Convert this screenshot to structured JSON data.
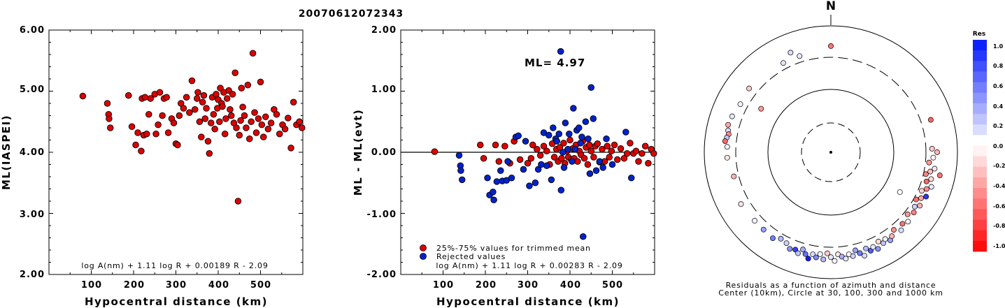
{
  "page_title": "20070612072343",
  "chart_data": [
    {
      "type": "scatter",
      "xlabel": "Hypocentral distance (km)",
      "ylabel": "ML(IASPEI)",
      "xticks": [
        "100",
        "200",
        "300",
        "400",
        "500"
      ],
      "yticks": [
        "2.00",
        "3.00",
        "4.00",
        "5.00",
        "6.00"
      ],
      "xlim": [
        0,
        600
      ],
      "ylim": [
        2.0,
        6.0
      ],
      "formula": "log A(nm) + 1.11 log R + 0.00189 R - 2.09",
      "series": [
        {
          "color": "#dd0000",
          "x": [
            80,
            138,
            141,
            142,
            145,
            188,
            196,
            205,
            210,
            218,
            220,
            224,
            227,
            231,
            236,
            240,
            250,
            253,
            258,
            262,
            268,
            272,
            278,
            282,
            290,
            295,
            300,
            304,
            308,
            312,
            318,
            325,
            332,
            338,
            345,
            350,
            352,
            356,
            360,
            363,
            366,
            369,
            372,
            376,
            379,
            383,
            386,
            389,
            392,
            395,
            398,
            400,
            403,
            405,
            408,
            410,
            413,
            416,
            418,
            421,
            425,
            428,
            431,
            434,
            437,
            440,
            443,
            447,
            450,
            453,
            455,
            458,
            462,
            466,
            470,
            474,
            478,
            482,
            486,
            490,
            495,
            500,
            503,
            507,
            512,
            518,
            525,
            532,
            538,
            545,
            552,
            558,
            565,
            572,
            578,
            585,
            592,
            598
          ],
          "y": [
            4.92,
            4.8,
            4.62,
            4.55,
            4.4,
            4.93,
            4.42,
            4.12,
            4.32,
            4.02,
            4.88,
            4.28,
            4.9,
            4.3,
            4.62,
            4.88,
            4.95,
            4.3,
            4.45,
            4.98,
            4.6,
            4.88,
            4.9,
            4.32,
            4.55,
            4.48,
            4.14,
            4.12,
            4.6,
            4.8,
            4.72,
            4.9,
            4.65,
            5.17,
            4.7,
            4.88,
            4.98,
            4.5,
            4.25,
            4.82,
            4.93,
            4.55,
            4.72,
            4.18,
            3.98,
            4.48,
            4.9,
            4.62,
            4.38,
            4.95,
            4.72,
            4.86,
            4.5,
            5.05,
            4.8,
            4.75,
            4.98,
            4.3,
            4.55,
            4.88,
            5.01,
            4.7,
            4.6,
            4.95,
            4.48,
            5.3,
            4.4,
            3.2,
            4.28,
            4.52,
            5.05,
            4.74,
            4.6,
            4.4,
            5.1,
            4.22,
            4.5,
            5.62,
            4.65,
            4.32,
            4.55,
            5.15,
            4.45,
            4.25,
            4.58,
            4.38,
            4.48,
            4.7,
            4.62,
            4.3,
            4.45,
            4.38,
            4.56,
            4.07,
            4.82,
            4.45,
            4.5,
            4.4
          ]
        }
      ]
    },
    {
      "type": "scatter",
      "xlabel": "Hypocentral distance (km)",
      "ylabel": "ML - ML(evt)",
      "xticks": [
        "100",
        "200",
        "300",
        "400",
        "500"
      ],
      "yticks": [
        "-2.00",
        "-1.00",
        "0.00",
        "1.00",
        "2.00"
      ],
      "xlim": [
        0,
        600
      ],
      "ylim": [
        -2.0,
        2.0
      ],
      "annotation": "ML= 4.97",
      "formula": "log A(nm) + 1.11 log R + 0.00283 R - 2.09",
      "legend_position": "bottom-left",
      "series": [
        {
          "name": "25%-75% values for trimmed mean",
          "color": "#dd0000",
          "x": [
            80,
            188,
            196,
            224,
            232,
            246,
            258,
            268,
            282,
            300,
            308,
            312,
            322,
            330,
            338,
            345,
            352,
            358,
            363,
            368,
            372,
            376,
            380,
            385,
            388,
            393,
            396,
            400,
            403,
            406,
            410,
            414,
            418,
            422,
            426,
            430,
            434,
            438,
            442,
            446,
            450,
            456,
            460,
            465,
            470,
            476,
            482,
            488,
            493,
            498,
            505,
            512,
            520,
            528,
            535,
            542,
            550,
            556,
            562,
            570,
            578,
            585,
            592,
            598
          ],
          "y": [
            0.01,
            0.12,
            -0.1,
            0.12,
            -0.15,
            0.1,
            -0.18,
            0.18,
            -0.12,
            -0.18,
            -0.1,
            0.12,
            0.05,
            -0.05,
            0.1,
            0.02,
            -0.2,
            0.14,
            -0.08,
            0.05,
            -0.15,
            0.08,
            -0.1,
            0.15,
            -0.18,
            0.02,
            -0.08,
            0.2,
            -0.12,
            0.06,
            -0.1,
            0.12,
            -0.15,
            0.02,
            -0.04,
            0.18,
            -0.1,
            0.08,
            -0.2,
            0.12,
            0.02,
            -0.08,
            0.1,
            0.14,
            -0.16,
            0.05,
            -0.15,
            0.1,
            -0.08,
            0.02,
            0.12,
            -0.12,
            0.06,
            -0.1,
            -0.02,
            0.15,
            -0.02,
            0.02,
            -0.15,
            -0.02,
            0.1,
            -0.18,
            0.05,
            -0.02
          ]
        },
        {
          "name": "Rejected values",
          "color": "#0022cc",
          "x": [
            138,
            141,
            142,
            145,
            205,
            210,
            218,
            220,
            227,
            236,
            240,
            250,
            253,
            262,
            272,
            278,
            290,
            295,
            304,
            318,
            325,
            332,
            338,
            345,
            350,
            356,
            360,
            366,
            369,
            374,
            378,
            379,
            383,
            386,
            389,
            395,
            398,
            405,
            408,
            412,
            416,
            421,
            425,
            428,
            431,
            437,
            443,
            447,
            450,
            455,
            462,
            470,
            478,
            486,
            500,
            532,
            545
          ],
          "y": [
            -0.05,
            -0.22,
            -0.3,
            -0.45,
            -0.42,
            -0.7,
            -0.65,
            -0.78,
            -0.48,
            -0.3,
            -0.47,
            -0.46,
            -0.15,
            -0.42,
            0.25,
            0.27,
            -0.28,
            0.18,
            -0.55,
            -0.5,
            -0.28,
            -0.2,
            0.32,
            -0.22,
            0.28,
            -0.45,
            0.4,
            0.22,
            0.18,
            0.3,
            1.65,
            -0.62,
            0.0,
            -0.25,
            0.48,
            0.05,
            0.3,
            -0.15,
            0.72,
            0.05,
            0.36,
            0.4,
            0.15,
            0.25,
            -1.38,
            0.5,
            0.22,
            -0.35,
            1.06,
            0.55,
            -0.3,
            -0.15,
            -0.25,
            0.22,
            -0.2,
            0.33,
            -0.42
          ]
        }
      ]
    },
    {
      "type": "polar-scatter",
      "north_label": "N",
      "caption_line1": "Residuals as a function of azimuth and distance",
      "caption_line2": "Center (10km), Circle at 30, 100, 300 and 1000 km",
      "colorbar_title": "Res",
      "colorbar_ticks": [
        "1.0",
        "0.8",
        "0.6",
        "0.4",
        "0.2",
        "0.0",
        "-0.2",
        "-0.4",
        "-0.6",
        "-0.8",
        "-1.0"
      ],
      "rings_km": [
        30,
        100,
        300,
        1000
      ],
      "points": [
        {
          "az": 0,
          "r": 0.84,
          "res": -0.55
        },
        {
          "az": -18,
          "r": 0.8,
          "res": 0.1
        },
        {
          "az": -22,
          "r": 0.85,
          "res": 0.15
        },
        {
          "az": -28,
          "r": 0.8,
          "res": 0.12
        },
        {
          "az": -52,
          "r": 0.82,
          "res": -0.2
        },
        {
          "az": -62,
          "r": 0.81,
          "res": 0.05
        },
        {
          "az": -58,
          "r": 0.65,
          "res": -0.4
        },
        {
          "az": -70,
          "r": 0.83,
          "res": 0.1
        },
        {
          "az": -75,
          "r": 0.84,
          "res": -0.35
        },
        {
          "az": -78,
          "r": 0.83,
          "res": 0.15
        },
        {
          "az": -80,
          "r": 0.82,
          "res": -0.45
        },
        {
          "az": -82,
          "r": 0.83,
          "res": 0.25
        },
        {
          "az": -84,
          "r": 0.84,
          "res": -0.6
        },
        {
          "az": -87,
          "r": 0.82,
          "res": 0.05
        },
        {
          "az": -93,
          "r": 0.82,
          "res": -0.1
        },
        {
          "az": -104,
          "r": 0.79,
          "res": -0.3
        },
        {
          "az": -120,
          "r": 0.82,
          "res": -0.1
        },
        {
          "az": -132,
          "r": 0.81,
          "res": 0.05
        },
        {
          "az": -139,
          "r": 0.81,
          "res": 0.4
        },
        {
          "az": -146,
          "r": 0.82,
          "res": 0.55
        },
        {
          "az": -150,
          "r": 0.79,
          "res": 0.3
        },
        {
          "az": -154,
          "r": 0.8,
          "res": 0.2
        },
        {
          "az": -157,
          "r": 0.83,
          "res": 0.45
        },
        {
          "az": -160,
          "r": 0.82,
          "res": 0.8
        },
        {
          "az": -162,
          "r": 0.84,
          "res": 0.25
        },
        {
          "az": -164,
          "r": 0.8,
          "res": 0.35
        },
        {
          "az": -166,
          "r": 0.83,
          "res": 0.6
        },
        {
          "az": -168,
          "r": 0.86,
          "res": 0.95
        },
        {
          "az": -170,
          "r": 0.82,
          "res": 0.15
        },
        {
          "az": -172,
          "r": 0.84,
          "res": 0.5
        },
        {
          "az": -174,
          "r": 0.81,
          "res": 0.05
        },
        {
          "az": -176,
          "r": 0.85,
          "res": 0.3
        },
        {
          "az": -178,
          "r": 0.8,
          "res": -0.2
        },
        {
          "az": 180,
          "r": 0.83,
          "res": 0.1
        },
        {
          "az": 178,
          "r": 0.86,
          "res": 0.05
        },
        {
          "az": 176,
          "r": 0.81,
          "res": -0.1
        },
        {
          "az": 174,
          "r": 0.83,
          "res": 0.35
        },
        {
          "az": 172,
          "r": 0.85,
          "res": 0.1
        },
        {
          "az": 170,
          "r": 0.82,
          "res": -0.05
        },
        {
          "az": 168,
          "r": 0.84,
          "res": 0.2
        },
        {
          "az": 166,
          "r": 0.8,
          "res": 0.4
        },
        {
          "az": 164,
          "r": 0.83,
          "res": 0.55
        },
        {
          "az": 162,
          "r": 0.86,
          "res": 0.15
        },
        {
          "az": 160,
          "r": 0.81,
          "res": 0.3
        },
        {
          "az": 158,
          "r": 0.84,
          "res": 0.7
        },
        {
          "az": 156,
          "r": 0.82,
          "res": 0.1
        },
        {
          "az": 154,
          "r": 0.85,
          "res": 0.45
        },
        {
          "az": 152,
          "r": 0.8,
          "res": -0.15
        },
        {
          "az": 150,
          "r": 0.83,
          "res": 0.25
        },
        {
          "az": 148,
          "r": 0.81,
          "res": 0.05
        },
        {
          "az": 146,
          "r": 0.84,
          "res": 0.4
        },
        {
          "az": 144,
          "r": 0.82,
          "res": -0.3
        },
        {
          "az": 141,
          "r": 0.79,
          "res": -0.45
        },
        {
          "az": 138,
          "r": 0.83,
          "res": 0.15
        },
        {
          "az": 135,
          "r": 0.8,
          "res": -0.55
        },
        {
          "az": 132,
          "r": 0.82,
          "res": 0.05
        },
        {
          "az": 129,
          "r": 0.78,
          "res": -0.4
        },
        {
          "az": 126,
          "r": 0.81,
          "res": -0.5
        },
        {
          "az": 123,
          "r": 0.79,
          "res": 0.2
        },
        {
          "az": 121,
          "r": 0.82,
          "res": -0.3
        },
        {
          "az": 119,
          "r": 0.77,
          "res": -0.55
        },
        {
          "az": 117,
          "r": 0.8,
          "res": -0.35
        },
        {
          "az": 115,
          "r": 0.83,
          "res": 0.85
        },
        {
          "az": 113,
          "r": 0.78,
          "res": -0.2
        },
        {
          "az": 111,
          "r": 0.81,
          "res": -0.45
        },
        {
          "az": 109,
          "r": 0.84,
          "res": 0.1
        },
        {
          "az": 107,
          "r": 0.79,
          "res": -0.6
        },
        {
          "az": 105,
          "r": 0.82,
          "res": -0.15
        },
        {
          "az": 103,
          "r": 0.77,
          "res": -0.5
        },
        {
          "az": 101,
          "r": 0.8,
          "res": -0.25
        },
        {
          "az": 99,
          "r": 0.83,
          "res": -0.1
        },
        {
          "az": 96,
          "r": 0.78,
          "res": -0.4
        },
        {
          "az": 93,
          "r": 0.81,
          "res": -0.05
        },
        {
          "az": 90,
          "r": 0.84,
          "res": -0.3
        },
        {
          "az": 88,
          "r": 0.8,
          "res": -0.2
        },
        {
          "az": 120,
          "r": 0.63,
          "res": 0.0
        },
        {
          "az": 102,
          "r": 0.88,
          "res": -0.55
        },
        {
          "az": 72,
          "r": 0.83,
          "res": -0.6
        }
      ]
    }
  ]
}
